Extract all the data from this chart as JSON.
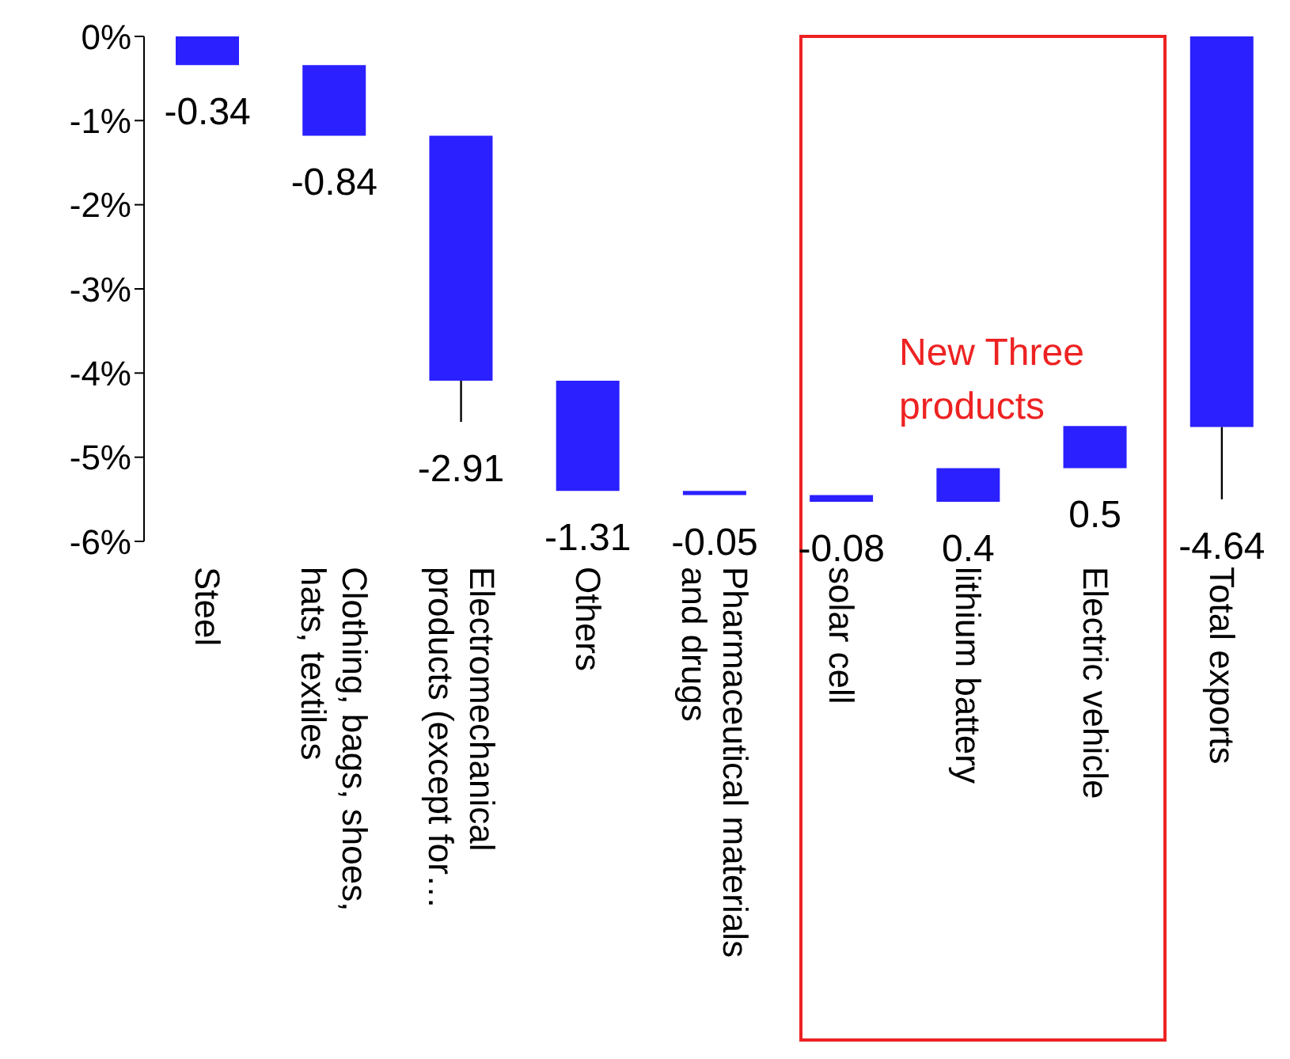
{
  "chart_data": {
    "type": "bar",
    "categories": [
      "Steel",
      "Clothing, bags, shoes, hats, textiles",
      "Electromechanical products (except for…",
      "Others",
      "Pharmaceutical materials and drugs",
      "solar cell",
      "lithium battery",
      "Electric vehicle",
      "Total exports"
    ],
    "values": [
      -0.34,
      -0.84,
      -2.91,
      -1.31,
      -0.05,
      -0.08,
      0.4,
      0.5,
      -4.64
    ],
    "base": [
      0,
      -0.34,
      -1.18,
      -4.09,
      -5.4,
      -5.45,
      -5.53,
      -5.13,
      0
    ],
    "errors": [
      null,
      null,
      [
        -4.58,
        -4.09
      ],
      null,
      null,
      null,
      null,
      null,
      [
        -5.5,
        -4.64
      ]
    ],
    "color": "#2b20ff",
    "data_labels": true,
    "ylim": [
      -6,
      0
    ],
    "yticks": [
      {
        "value": 0,
        "label": "0%"
      },
      {
        "value": -1,
        "label": "-1%"
      },
      {
        "value": -2,
        "label": "-2%"
      },
      {
        "value": -3,
        "label": "-3%"
      },
      {
        "value": -4,
        "label": "-4%"
      },
      {
        "value": -5,
        "label": "-5%"
      },
      {
        "value": -6,
        "label": "-6%"
      }
    ],
    "annotations": [
      "New Three products"
    ]
  }
}
